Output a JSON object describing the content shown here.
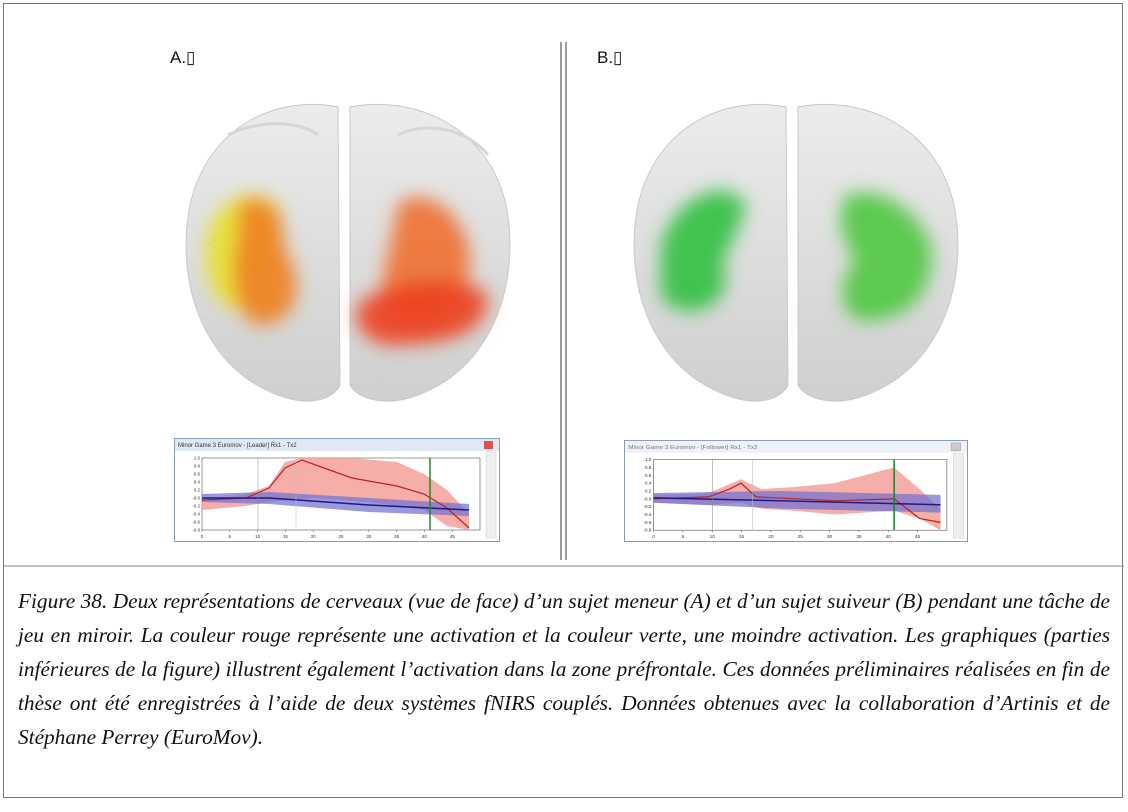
{
  "panels": [
    {
      "label": "A.▯",
      "window_title": "Minor Game 3 Euromov - [Leader] Rx1 - Tx2",
      "x_ticks": [
        0,
        5,
        10,
        15,
        20,
        25,
        30,
        35,
        40,
        45
      ],
      "y_ticks": [
        "1.0",
        "0.8",
        "0.6",
        "0.4",
        "0.2",
        "-0.0",
        "-0.2",
        "-0.4",
        "-0.6",
        "-0.8"
      ]
    },
    {
      "label": "B.▯",
      "window_title": "Minor Game 3 Euromov - [Follower] Rx1 - Tx2",
      "x_ticks": [
        0,
        5,
        10,
        15,
        20,
        25,
        30,
        35,
        40,
        45
      ],
      "y_ticks": [
        "1.0",
        "0.8",
        "0.6",
        "0.4",
        "0.2",
        "-0.0",
        "-0.2",
        "-0.4",
        "-0.6",
        "-0.8"
      ]
    }
  ],
  "caption": "Figure 38. Deux représentations de cerveaux (vue de face) d’un sujet meneur (A) et d’un sujet suiveur (B) pendant une tâche de jeu en miroir. La couleur rouge représente une activation et la couleur verte, une moindre activation. Les graphiques (parties inférieures de la figure) illustrent également l’activation dans la zone préfrontale. Ces données préliminaires réalisées en fin de thèse ont été enregistrées à l’aide de deux systèmes fNIRS couplés. Données obtenues avec la collaboration d’Artinis et de Stéphane Perrey (EuroMov)."
}
